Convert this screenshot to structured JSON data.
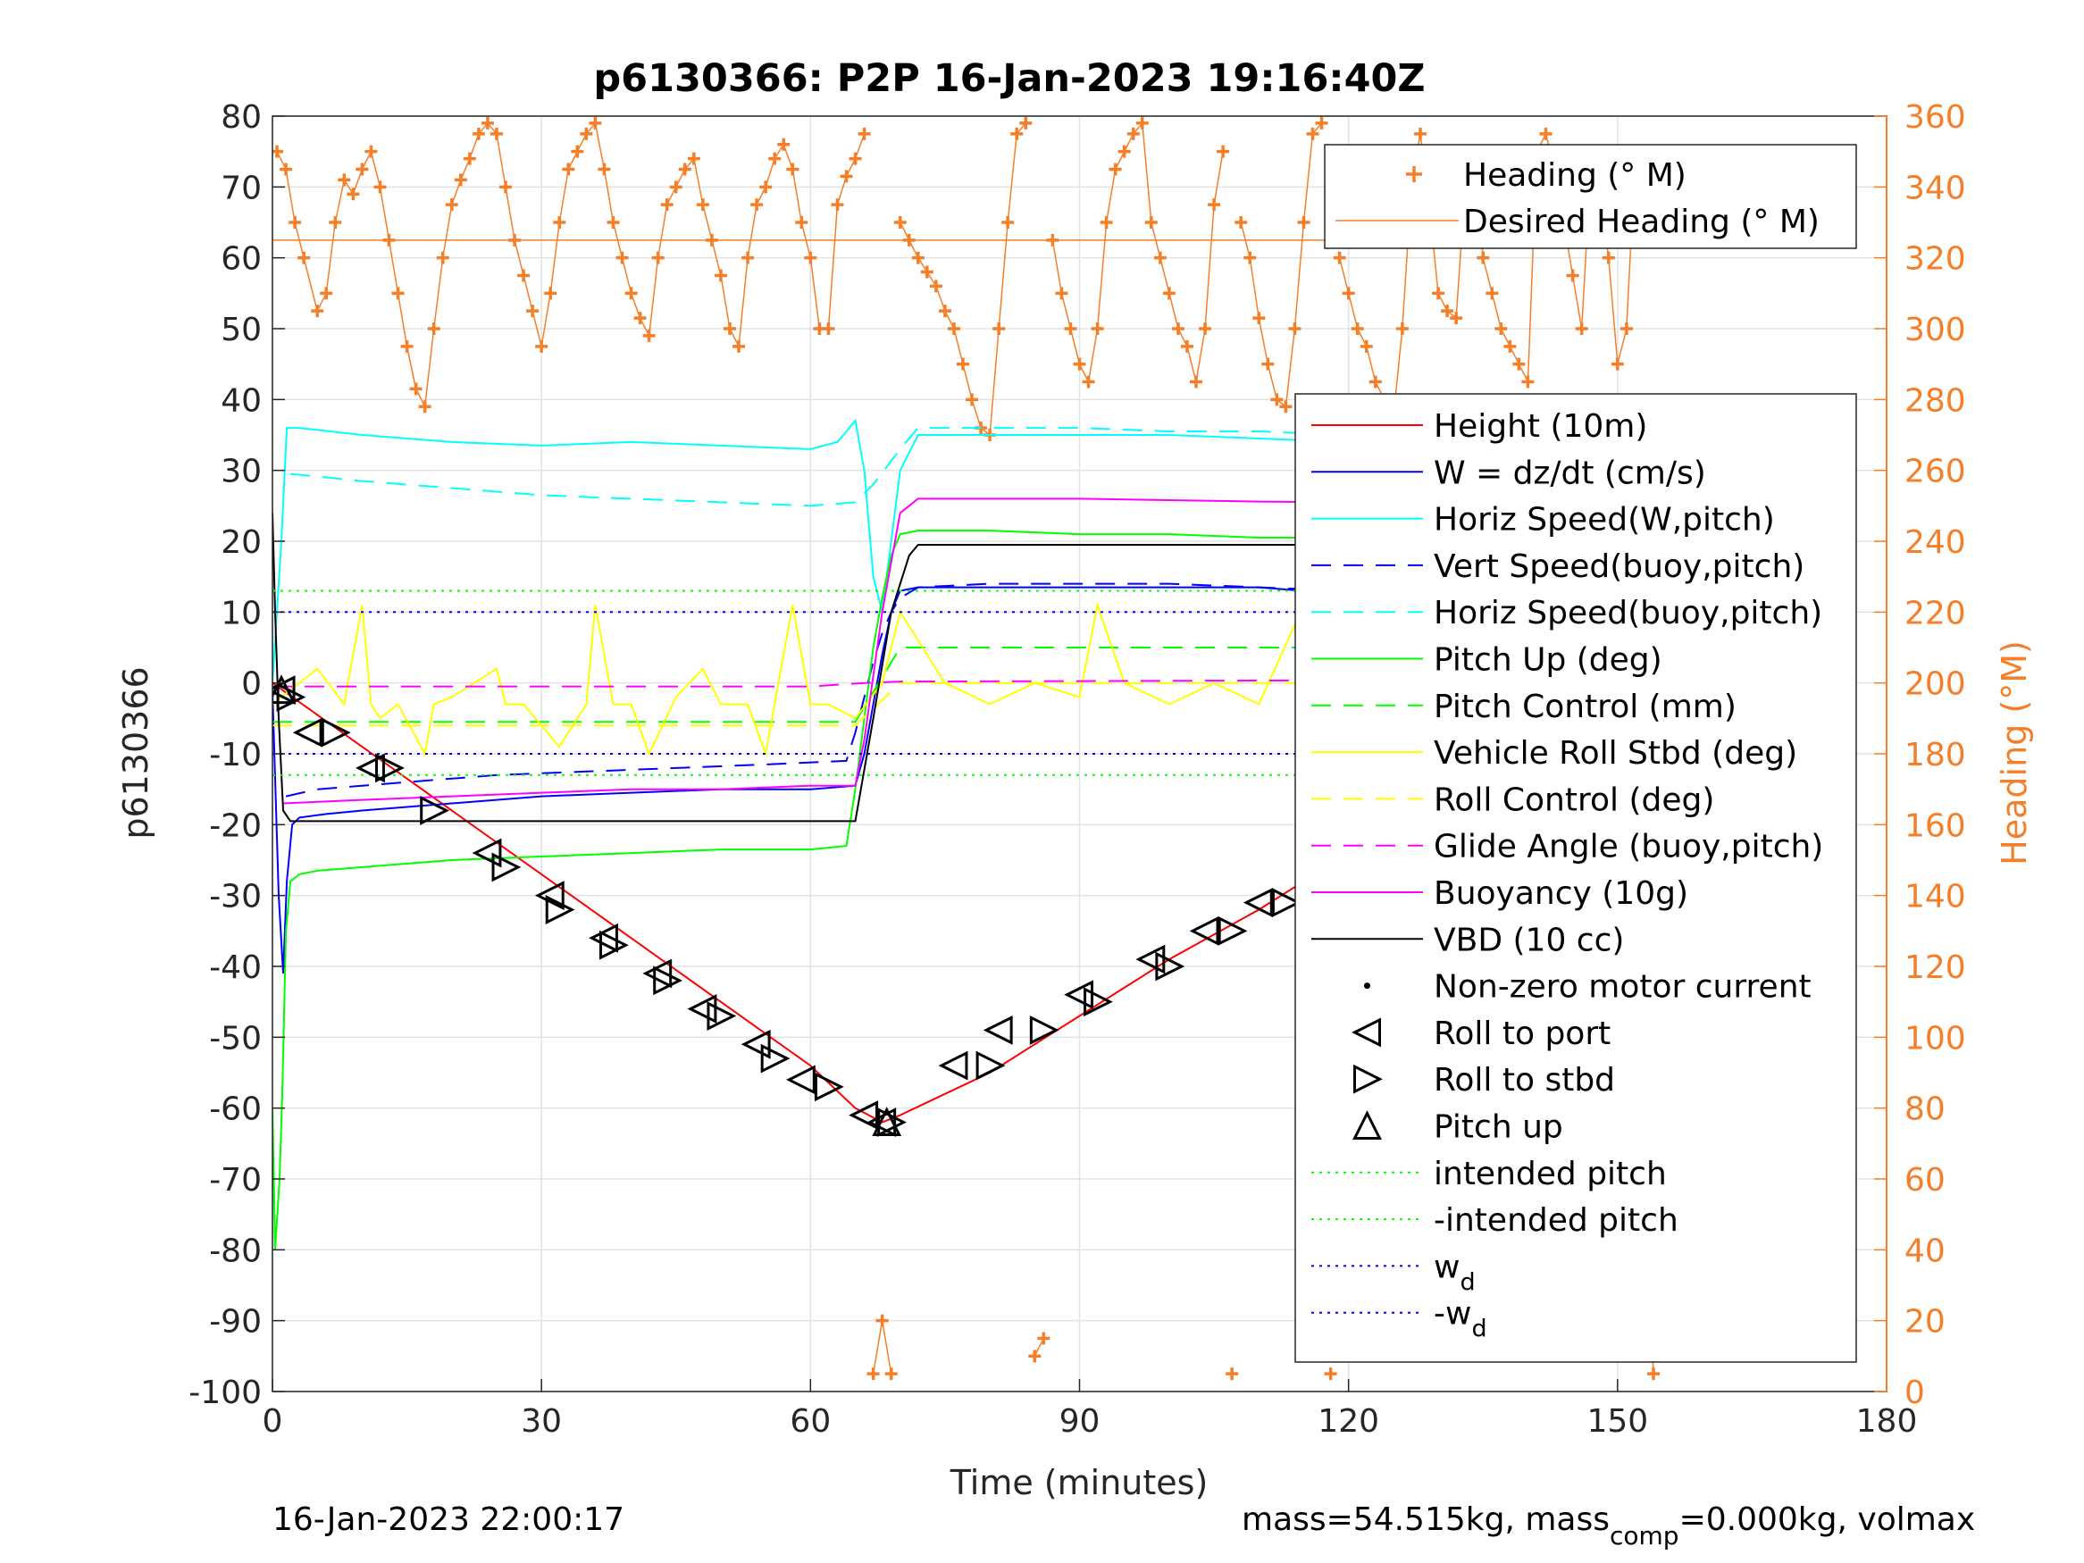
{
  "chart_data": {
    "type": "line",
    "title": "p6130366: P2P 16-Jan-2023 19:16:40Z",
    "xlabel": "Time (minutes)",
    "ylabel": "p6130366",
    "ylabel_right": "Heading (°M)",
    "xlim": [
      0,
      180
    ],
    "ylim": [
      -100,
      80
    ],
    "ylim_right": [
      0,
      360
    ],
    "x_ticks": [
      "0",
      "30",
      "60",
      "90",
      "120",
      "150",
      "180"
    ],
    "y_ticks": [
      "80",
      "70",
      "60",
      "50",
      "40",
      "30",
      "20",
      "10",
      "0",
      "-10",
      "-20",
      "-30",
      "-40",
      "-50",
      "-60",
      "-70",
      "-80",
      "-90",
      "-100"
    ],
    "y_ticks_right": [
      "360",
      "340",
      "320",
      "300",
      "280",
      "260",
      "240",
      "220",
      "200",
      "180",
      "160",
      "140",
      "120",
      "100",
      "80",
      "60",
      "40",
      "20",
      "0"
    ],
    "grid": true,
    "footer_left": "16-Jan-2023 22:00:17",
    "footer_right": {
      "prefix": "mass=54.515kg, mass",
      "sub": "comp",
      "suffix": "=0.000kg, volmax"
    },
    "legend_heading": {
      "placement": "top-right",
      "entries": [
        {
          "label": "Heading (° M)",
          "color": "#f47f28",
          "style": "plus"
        },
        {
          "label": "Desired Heading (° M)",
          "color": "#f47f28",
          "style": "solid-thin"
        }
      ]
    },
    "legend_main": {
      "placement": "right",
      "entries": [
        {
          "label": "Height (10m)",
          "color": "#ff0000",
          "style": "solid"
        },
        {
          "label": "W = dz/dt (cm/s)",
          "color": "#0000ff",
          "style": "solid"
        },
        {
          "label": "Horiz Speed(W,pitch)",
          "color": "#00ffff",
          "style": "solid"
        },
        {
          "label": "Vert Speed(buoy,pitch)",
          "color": "#0000ff",
          "style": "dashed"
        },
        {
          "label": "Horiz Speed(buoy,pitch)",
          "color": "#00ffff",
          "style": "dashed"
        },
        {
          "label": "Pitch Up (deg)",
          "color": "#00ff00",
          "style": "solid"
        },
        {
          "label": "Pitch Control (mm)",
          "color": "#00ff00",
          "style": "dashed"
        },
        {
          "label": "Vehicle Roll Stbd (deg)",
          "color": "#ffff00",
          "style": "solid"
        },
        {
          "label": "Roll Control (deg)",
          "color": "#ffff00",
          "style": "dashed"
        },
        {
          "label": "Glide Angle (buoy,pitch)",
          "color": "#ff00ff",
          "style": "dashed"
        },
        {
          "label": "Buoyancy (10g)",
          "color": "#ff00ff",
          "style": "solid"
        },
        {
          "label": "VBD (10 cc)",
          "color": "#000000",
          "style": "solid"
        },
        {
          "label": "Non-zero motor current",
          "color": "#000000",
          "style": "dot"
        },
        {
          "label": "Roll to port",
          "color": "#000000",
          "style": "tri-left"
        },
        {
          "label": "Roll to stbd",
          "color": "#000000",
          "style": "tri-right"
        },
        {
          "label": "Pitch up",
          "color": "#000000",
          "style": "tri-up"
        },
        {
          "label": "intended pitch",
          "color": "#00ff00",
          "style": "dotted"
        },
        {
          "label": "-intended pitch",
          "color": "#00ff00",
          "style": "dotted"
        },
        {
          "label": "w",
          "sub": "d",
          "color": "#0000ff",
          "style": "dotted"
        },
        {
          "label": "-w",
          "sub": "d",
          "color": "#0000ff",
          "style": "dotted"
        }
      ]
    },
    "series": [
      {
        "name": "Height (10m)",
        "color": "#ff0000",
        "style": "solid",
        "x": [
          0,
          10,
          20,
          30,
          40,
          50,
          60,
          65,
          68,
          70,
          80,
          90,
          100,
          110,
          120,
          130,
          140,
          150,
          155
        ],
        "y": [
          0,
          -9,
          -18,
          -27,
          -36,
          -45,
          -54,
          -60,
          -62,
          -61,
          -55,
          -47,
          -39,
          -32,
          -24,
          -17,
          -10,
          -3,
          0
        ]
      },
      {
        "name": "W = dz/dt (cm/s)",
        "color": "#0000ff",
        "style": "solid",
        "x": [
          0,
          0.7,
          1.2,
          1.6,
          2.2,
          3,
          6,
          10,
          20,
          30,
          40,
          50,
          60,
          65,
          66,
          67,
          68,
          69,
          70,
          72,
          80,
          90,
          100,
          110,
          120,
          130,
          140,
          150,
          153,
          155
        ],
        "y": [
          -1,
          -30,
          -41,
          -28,
          -20,
          -19,
          -18.5,
          -18,
          -17,
          -16,
          -15.5,
          -15,
          -15,
          -14.5,
          -10,
          -3,
          4,
          10,
          13,
          13.5,
          13.5,
          13.5,
          13.5,
          13.5,
          12.5,
          12.5,
          12,
          11.5,
          10,
          6
        ]
      },
      {
        "name": "Horiz Speed(W,pitch)",
        "color": "#00ffff",
        "style": "solid",
        "x": [
          0,
          1,
          1.6,
          3,
          10,
          20,
          30,
          40,
          50,
          60,
          63,
          65,
          66,
          67,
          68,
          69,
          70,
          72,
          80,
          90,
          100,
          110,
          120,
          130,
          140,
          148,
          152,
          155
        ],
        "y": [
          0,
          20,
          36,
          36,
          35,
          34,
          33.5,
          34,
          33.5,
          33,
          34,
          37,
          30,
          15,
          10,
          20,
          30,
          35,
          35,
          35,
          35,
          34.5,
          34,
          33,
          32,
          30,
          29,
          21
        ]
      },
      {
        "name": "Vert Speed(buoy,pitch)",
        "color": "#0000ff",
        "style": "dashed",
        "x": [
          1.5,
          5,
          15,
          25,
          35,
          45,
          55,
          64,
          65,
          66,
          67,
          68,
          69,
          70,
          72,
          80,
          90,
          100,
          110,
          120,
          130,
          140,
          150,
          155
        ],
        "y": [
          -16,
          -15,
          -14,
          -13,
          -12.5,
          -12,
          -11.5,
          -11,
          -7,
          -2,
          3,
          7,
          10,
          12,
          13.5,
          14,
          14,
          14,
          13.5,
          13,
          13,
          12.5,
          12,
          12
        ]
      },
      {
        "name": "Horiz Speed(buoy,pitch)",
        "color": "#00ffff",
        "style": "dashed",
        "x": [
          2,
          10,
          20,
          30,
          40,
          50,
          60,
          65,
          67,
          70,
          72,
          80,
          90,
          100,
          110,
          120,
          130,
          140,
          150,
          155
        ],
        "y": [
          29.5,
          28.5,
          27.5,
          26.5,
          26,
          25.5,
          25,
          25.5,
          28,
          33,
          36,
          36,
          36,
          35.5,
          35.5,
          35,
          34.5,
          34,
          34,
          33
        ]
      },
      {
        "name": "Pitch Up (deg)",
        "color": "#00ff00",
        "style": "solid",
        "x": [
          0,
          0.3,
          0.8,
          1.1,
          1.5,
          2,
          3,
          5,
          10,
          20,
          30,
          40,
          50,
          60,
          64,
          65,
          66,
          67,
          68,
          69,
          70,
          72,
          80,
          90,
          100,
          110,
          120,
          130,
          140,
          150,
          155
        ],
        "y": [
          -60,
          -80,
          -70,
          -58,
          -35,
          -28,
          -27,
          -26.5,
          -26,
          -25,
          -24.5,
          -24,
          -23.5,
          -23.5,
          -23,
          -15,
          -5,
          5,
          12,
          18,
          21,
          21.5,
          21.5,
          21,
          21,
          20.5,
          20.5,
          20,
          20,
          19,
          18
        ]
      },
      {
        "name": "Pitch Control (mm)",
        "color": "#00ff00",
        "style": "dashed",
        "x": [
          0,
          65,
          70,
          155
        ],
        "y": [
          -5.5,
          -5.5,
          5,
          5
        ]
      },
      {
        "name": "Vehicle Roll Stbd (deg)",
        "color": "#ffff00",
        "style": "solid",
        "x": [
          0,
          2,
          5,
          8,
          10,
          11,
          12,
          14,
          17,
          18,
          20,
          25,
          26,
          28,
          32,
          35,
          36,
          38,
          40,
          42,
          45,
          48,
          50,
          53,
          55,
          58,
          60,
          62,
          65,
          68,
          70,
          75,
          80,
          85,
          90,
          92,
          95,
          100,
          105,
          110,
          115,
          120,
          125,
          130,
          135,
          140,
          145,
          150,
          155
        ],
        "y": [
          -3,
          -1,
          2,
          -3,
          11,
          -3,
          -5,
          -3,
          -10,
          -3,
          -2,
          2,
          -3,
          -3,
          -9,
          -3,
          11,
          -3,
          -3,
          -10,
          -2,
          2,
          -3,
          -3,
          -10,
          11,
          -3,
          -3,
          -5,
          0,
          10,
          0,
          -3,
          0,
          -2,
          11,
          0,
          -3,
          0,
          -3,
          11,
          -3,
          0,
          -3,
          0,
          -4,
          11,
          -3,
          -8
        ]
      },
      {
        "name": "Roll Control (deg)",
        "color": "#ffff00",
        "style": "dashed",
        "x": [
          0,
          65,
          70,
          155
        ],
        "y": [
          -6,
          -6,
          0,
          0
        ]
      },
      {
        "name": "Glide Angle (buoy,pitch)",
        "color": "#ff00ff",
        "style": "dashed",
        "x": [
          0,
          30,
          60,
          66,
          70,
          100,
          155
        ],
        "y": [
          -0.5,
          -0.5,
          -0.5,
          0,
          0.2,
          0.3,
          0.5
        ]
      },
      {
        "name": "Buoyancy (10g)",
        "color": "#ff00ff",
        "style": "solid",
        "x": [
          1.2,
          10,
          20,
          30,
          40,
          50,
          60,
          65,
          66,
          68,
          70,
          72,
          80,
          90,
          100,
          110,
          120,
          130,
          140,
          150,
          153,
          155
        ],
        "y": [
          -17,
          -16.5,
          -16,
          -15.5,
          -15,
          -15,
          -14.5,
          -14.5,
          -8,
          10,
          24,
          26,
          26,
          26,
          25.8,
          25.6,
          25.5,
          25.2,
          25,
          24.5,
          24,
          22
        ]
      },
      {
        "name": "VBD (10 cc)",
        "color": "#000000",
        "style": "solid",
        "x": [
          0,
          0.3,
          0.7,
          1.2,
          2,
          10,
          20,
          30,
          40,
          50,
          60,
          65,
          67,
          69,
          71,
          72,
          80,
          90,
          100,
          110,
          120,
          130,
          140,
          150,
          155
        ],
        "y": [
          24,
          10,
          -5,
          -18,
          -19.5,
          -19.5,
          -19.5,
          -19.5,
          -19.5,
          -19.5,
          -19.5,
          -19.5,
          -5,
          10,
          18,
          19.5,
          19.5,
          19.5,
          19.5,
          19.5,
          19.5,
          19.5,
          19.5,
          19.5,
          20
        ]
      },
      {
        "name": "intended pitch",
        "color": "#00ff00",
        "style": "dotted",
        "x": [
          0,
          155
        ],
        "y": [
          13,
          13
        ]
      },
      {
        "name": "-intended pitch",
        "color": "#00ff00",
        "style": "dotted",
        "x": [
          0,
          155
        ],
        "y": [
          -13,
          -13
        ]
      },
      {
        "name": "w_d",
        "color": "#0000ff",
        "style": "dotted",
        "x": [
          0,
          155
        ],
        "y": [
          10,
          10
        ]
      },
      {
        "name": "-w_d",
        "color": "#0000ff",
        "style": "dotted",
        "x": [
          0,
          155
        ],
        "y": [
          -10,
          -10
        ]
      }
    ],
    "desired_heading": {
      "color": "#f47f28",
      "value": 325,
      "x": [
        0,
        155
      ]
    },
    "heading_series": {
      "color": "#f47f28",
      "x": [
        0.5,
        1.5,
        2.5,
        3.5,
        5,
        6,
        7,
        8,
        9,
        10,
        11,
        12,
        13,
        14,
        15,
        16,
        17,
        18,
        19,
        20,
        21,
        22,
        23,
        24,
        25,
        26,
        27,
        28,
        29,
        30,
        31,
        32,
        33,
        34,
        35,
        36,
        37,
        38,
        39,
        40,
        41,
        42,
        43,
        44,
        45,
        46,
        47,
        48,
        49,
        50,
        51,
        52,
        53,
        54,
        55,
        56,
        57,
        58,
        59,
        60,
        61,
        62,
        63,
        64,
        65,
        66,
        67,
        68,
        69,
        70,
        71,
        72,
        73,
        74,
        75,
        76,
        77,
        78,
        79,
        80,
        81,
        82,
        83,
        84,
        85,
        86,
        87,
        88,
        89,
        90,
        91,
        92,
        93,
        94,
        95,
        96,
        97,
        98,
        99,
        100,
        101,
        102,
        103,
        104,
        105,
        106,
        107,
        108,
        109,
        110,
        111,
        112,
        113,
        114,
        115,
        116,
        117,
        118,
        119,
        120,
        121,
        122,
        123,
        124,
        125,
        126,
        127,
        128,
        129,
        130,
        131,
        132,
        133,
        134,
        135,
        136,
        137,
        138,
        139,
        140,
        141,
        142,
        143,
        144,
        145,
        146,
        147,
        148,
        149,
        150,
        151,
        152,
        153,
        154
      ],
      "y": [
        350,
        345,
        330,
        320,
        305,
        310,
        330,
        342,
        338,
        345,
        350,
        340,
        325,
        310,
        295,
        283,
        278,
        300,
        320,
        335,
        342,
        348,
        355,
        358,
        355,
        340,
        325,
        315,
        305,
        295,
        310,
        330,
        345,
        350,
        355,
        358,
        345,
        330,
        320,
        310,
        303,
        298,
        320,
        335,
        340,
        345,
        348,
        335,
        325,
        315,
        300,
        295,
        320,
        335,
        340,
        348,
        352,
        345,
        330,
        320,
        300,
        300,
        335,
        343,
        348,
        355,
        5,
        20,
        5,
        330,
        325,
        320,
        316,
        312,
        305,
        300,
        290,
        280,
        272,
        270,
        300,
        330,
        355,
        358,
        10,
        15,
        325,
        310,
        300,
        290,
        285,
        300,
        330,
        345,
        350,
        355,
        358,
        330,
        320,
        310,
        300,
        295,
        285,
        300,
        335,
        350,
        5,
        330,
        320,
        303,
        290,
        280,
        278,
        300,
        330,
        355,
        358,
        5,
        320,
        310,
        300,
        295,
        285,
        280,
        275,
        300,
        340,
        355,
        335,
        310,
        305,
        303,
        340,
        350,
        320,
        310,
        300,
        295,
        290,
        285,
        350,
        355,
        345,
        330,
        315,
        300,
        345,
        340,
        320,
        290,
        300,
        350,
        60,
        5
      ]
    }
  },
  "markers": {
    "roll_port": {
      "x": [
        1,
        4,
        11,
        24,
        31,
        37,
        43,
        48,
        54,
        59,
        66,
        68,
        76,
        81,
        90,
        98,
        104,
        110,
        116,
        121,
        126,
        131,
        137,
        143,
        150
      ],
      "y": [
        -1,
        -7,
        -12,
        -24,
        -30,
        -36,
        -41,
        -46,
        -51,
        -56,
        -61,
        -62,
        -54,
        -49,
        -44,
        -39,
        -35,
        -31,
        -27,
        -23,
        -19,
        -15,
        -11,
        -6,
        -1
      ]
    },
    "roll_stbd": {
      "x": [
        2,
        7,
        13,
        18,
        26,
        32,
        38,
        44,
        50,
        56,
        62,
        69,
        80,
        86,
        92,
        100,
        107,
        113,
        118,
        124,
        129,
        133,
        139,
        146,
        153
      ],
      "y": [
        -2,
        -7,
        -12,
        -18,
        -26,
        -32,
        -37,
        -42,
        -47,
        -53,
        -57,
        -62,
        -54,
        -49,
        -45,
        -40,
        -35,
        -31,
        -27,
        -23,
        -19,
        -15,
        -10,
        -5,
        -1
      ]
    },
    "pitch_up": {
      "x": [
        1,
        68.5
      ],
      "y": [
        -1,
        -62
      ]
    }
  }
}
